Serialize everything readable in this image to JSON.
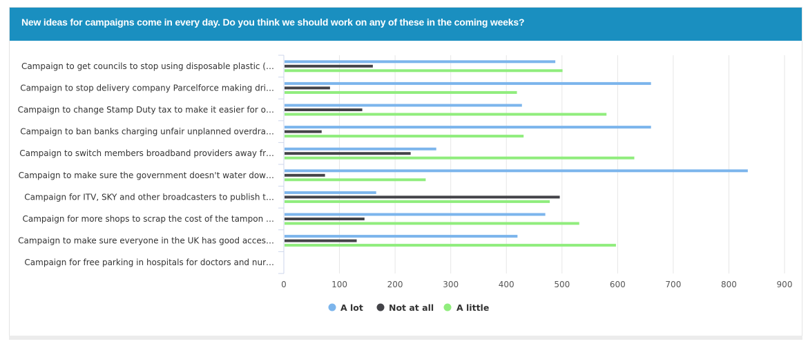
{
  "header": {
    "title": "New ideas for campaigns come in every day. Do you think we should work on any of these in the coming weeks?"
  },
  "colors": {
    "header_bg": "#1a8fc0",
    "a_lot": "#7cb5ec",
    "not_at_all": "#434348",
    "a_little": "#90ed7d"
  },
  "chart_data": {
    "type": "bar",
    "orientation": "horizontal",
    "categories": [
      "Campaign to get councils to stop using disposable plastic (…",
      "Campaign to stop delivery company Parcelforce making dri…",
      "Campaign to change Stamp Duty tax to make it easier for o…",
      "Campaign to ban banks charging unfair unplanned overdra…",
      "Campaign to switch members broadband providers away fr…",
      "Campaign to make sure the government doesn't water dow…",
      "Campaign for ITV, SKY and other broadcasters to publish t…",
      "Campaign for more shops to scrap the cost of the tampon …",
      "Campaign to make sure everyone in the UK has good acces…",
      "Campaign for free parking in hospitals for doctors and nur…"
    ],
    "series": [
      {
        "name": "A lot",
        "color": "#7cb5ec",
        "values": [
          488,
          660,
          428,
          660,
          274,
          834,
          166,
          470,
          420,
          0
        ]
      },
      {
        "name": "Not at all",
        "color": "#434348",
        "values": [
          160,
          83,
          141,
          68,
          228,
          74,
          496,
          145,
          131,
          0
        ]
      },
      {
        "name": "A little",
        "color": "#90ed7d",
        "values": [
          501,
          419,
          580,
          431,
          630,
          255,
          478,
          531,
          597,
          0
        ]
      }
    ],
    "xticks": [
      "0",
      "100",
      "200",
      "300",
      "400",
      "500",
      "600",
      "700",
      "800",
      "900"
    ],
    "xlim": [
      0,
      900
    ],
    "grid": true,
    "legend_position": "bottom-center"
  }
}
